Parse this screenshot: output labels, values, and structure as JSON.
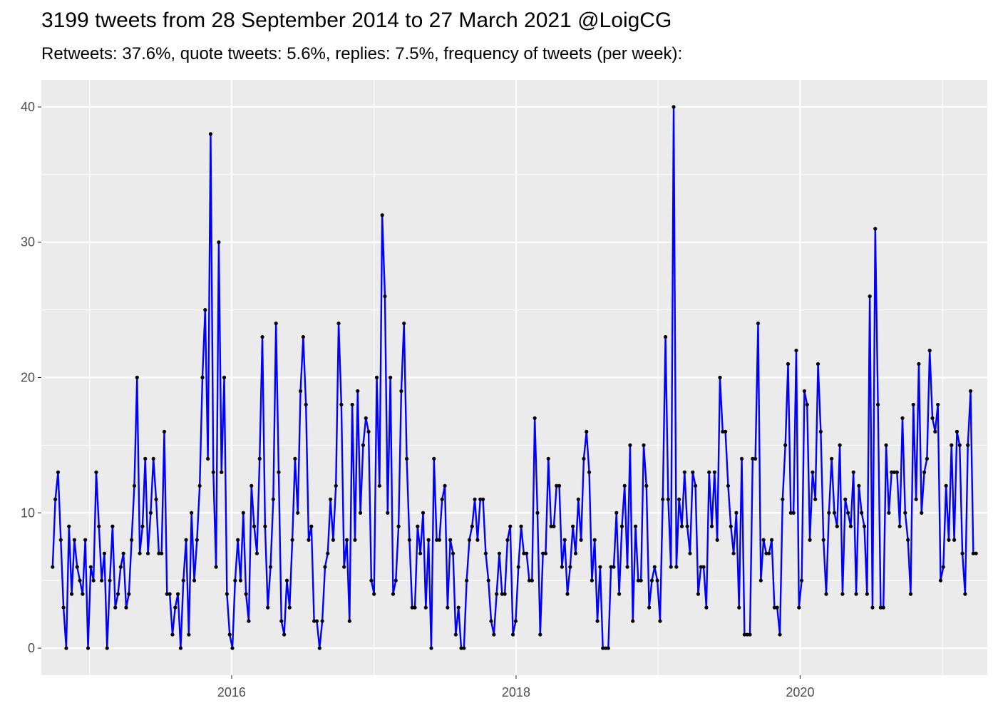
{
  "chart_data": {
    "type": "line",
    "title": "3199 tweets from 28 September 2014 to 27 March 2021 @LoigCG",
    "subtitle": "Retweets: 37.6%, quote tweets: 5.6%, replies: 7.5%, frequency of tweets (per week):",
    "xlabel": "",
    "ylabel": "",
    "x_start": "2014-09-28",
    "x_end": "2021-03-28",
    "xlim": [
      "2014-08-30",
      "2021-04-26"
    ],
    "ylim": [
      -2,
      42
    ],
    "x_ticks": [
      {
        "date": "2016-01-01",
        "label": "2016"
      },
      {
        "date": "2018-01-01",
        "label": "2018"
      },
      {
        "date": "2020-01-01",
        "label": "2020"
      }
    ],
    "x_minor_ticks": [
      "2015-01-01",
      "2017-01-01",
      "2019-01-01",
      "2021-01-01"
    ],
    "y_ticks": [
      0,
      10,
      20,
      30,
      40
    ],
    "y_minor_ticks": [
      5,
      15,
      25,
      35
    ],
    "grid": true,
    "colors": {
      "line": "#0000ff",
      "points": "#000000",
      "panel": "#ebebeb",
      "grid": "#ffffff"
    },
    "series": [
      {
        "values": [
          6,
          11,
          13,
          8,
          3,
          0,
          9,
          4,
          8,
          6,
          5,
          4,
          8,
          0,
          6,
          5,
          13,
          9,
          5,
          7,
          0,
          5,
          9,
          3,
          4,
          6,
          7,
          3,
          4,
          8,
          12,
          20,
          7,
          9,
          14,
          7,
          10,
          14,
          11,
          7,
          7,
          16,
          4,
          4,
          1,
          3,
          4,
          0,
          5,
          8,
          1,
          10,
          5,
          8,
          12,
          20,
          25,
          14,
          38,
          13,
          6,
          30,
          13,
          20,
          4,
          1,
          0,
          5,
          8,
          5,
          10,
          4,
          2,
          12,
          9,
          7,
          14,
          23,
          9,
          3,
          6,
          11,
          24,
          13,
          2,
          1,
          5,
          3,
          8,
          14,
          10,
          19,
          23,
          18,
          8,
          9,
          2,
          2,
          0,
          2,
          6,
          7,
          11,
          8,
          12,
          24,
          18,
          6,
          8,
          2,
          18,
          8,
          19,
          10,
          15,
          17,
          16,
          5,
          4,
          20,
          12,
          32,
          26,
          10,
          20,
          4,
          5,
          9,
          19,
          24,
          14,
          8,
          3,
          3,
          9,
          7,
          10,
          3,
          8,
          0,
          14,
          8,
          8,
          11,
          12,
          3,
          8,
          7,
          1,
          3,
          0,
          0,
          5,
          8,
          9,
          11,
          8,
          11,
          11,
          7,
          5,
          2,
          1,
          4,
          7,
          4,
          4,
          8,
          9,
          1,
          2,
          6,
          9,
          7,
          7,
          5,
          5,
          17,
          10,
          1,
          7,
          7,
          14,
          9,
          9,
          12,
          12,
          6,
          8,
          4,
          6,
          9,
          7,
          11,
          8,
          14,
          16,
          13,
          5,
          8,
          2,
          6,
          0,
          0,
          0,
          6,
          6,
          10,
          4,
          9,
          12,
          6,
          15,
          2,
          9,
          5,
          5,
          15,
          12,
          3,
          5,
          6,
          5,
          2,
          11,
          23,
          11,
          6,
          40,
          6,
          11,
          9,
          13,
          9,
          7,
          13,
          12,
          4,
          6,
          6,
          3,
          13,
          9,
          13,
          8,
          20,
          16,
          16,
          12,
          9,
          7,
          10,
          3,
          14,
          1,
          1,
          1,
          14,
          14,
          24,
          5,
          8,
          7,
          7,
          8,
          3,
          3,
          1,
          11,
          15,
          21,
          10,
          10,
          22,
          3,
          5,
          19,
          18,
          8,
          13,
          11,
          21,
          16,
          8,
          4,
          10,
          14,
          10,
          9,
          15,
          4,
          11,
          10,
          9,
          13,
          4,
          12,
          10,
          9,
          4,
          26,
          3,
          31,
          18,
          3,
          3,
          15,
          10,
          13,
          13,
          13,
          9,
          17,
          10,
          8,
          4,
          18,
          11,
          21,
          10,
          13,
          14,
          22,
          17,
          16,
          18,
          5,
          6,
          12,
          8,
          15,
          8,
          16,
          15,
          7,
          4,
          15,
          19,
          7,
          7
        ]
      }
    ]
  }
}
